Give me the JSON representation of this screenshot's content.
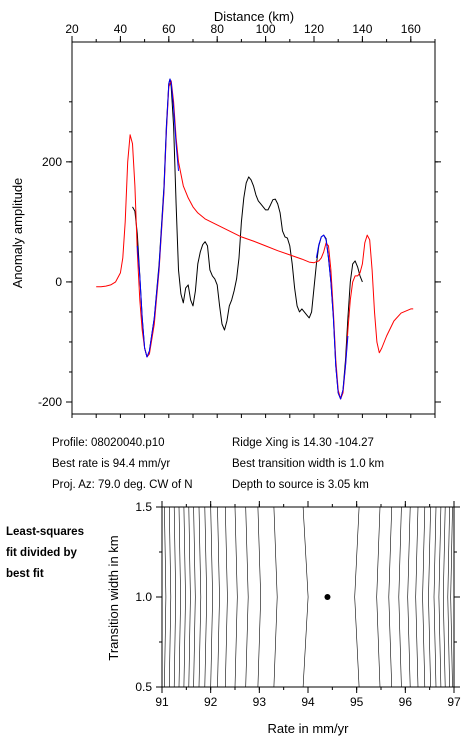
{
  "chart_data": [
    {
      "type": "line",
      "xlabel": "Distance (km)",
      "ylabel": "Anomaly amplitude",
      "xlim": [
        20,
        170
      ],
      "ylim": [
        -210,
        360
      ],
      "xticks": [
        20,
        40,
        60,
        80,
        100,
        120,
        140,
        160
      ],
      "yticks": [
        -200,
        0,
        200
      ],
      "x_axis_position": "top",
      "grid": false,
      "series": [
        {
          "color": "#000000",
          "role": "observed",
          "points": [
            [
              45,
              125
            ],
            [
              46,
              118
            ],
            [
              47,
              80
            ],
            [
              48,
              10
            ],
            [
              49,
              -60
            ],
            [
              50,
              -110
            ],
            [
              51,
              -125
            ],
            [
              52,
              -115
            ],
            [
              54,
              -60
            ],
            [
              56,
              30
            ],
            [
              58,
              160
            ],
            [
              59,
              260
            ],
            [
              60,
              330
            ],
            [
              60.5,
              338
            ],
            [
              61,
              325
            ],
            [
              62,
              260
            ],
            [
              63,
              130
            ],
            [
              64,
              20
            ],
            [
              65,
              -20
            ],
            [
              66,
              -35
            ],
            [
              67,
              -10
            ],
            [
              68,
              -5
            ],
            [
              69,
              -30
            ],
            [
              70,
              -40
            ],
            [
              71,
              -15
            ],
            [
              72,
              30
            ],
            [
              73,
              50
            ],
            [
              74,
              62
            ],
            [
              75,
              67
            ],
            [
              76,
              60
            ],
            [
              77,
              20
            ],
            [
              78,
              10
            ],
            [
              79,
              5
            ],
            [
              80,
              -5
            ],
            [
              81,
              -40
            ],
            [
              82,
              -70
            ],
            [
              83,
              -80
            ],
            [
              84,
              -65
            ],
            [
              85,
              -40
            ],
            [
              86,
              -30
            ],
            [
              87,
              -15
            ],
            [
              88,
              5
            ],
            [
              89,
              40
            ],
            [
              90,
              100
            ],
            [
              91,
              140
            ],
            [
              92,
              165
            ],
            [
              93,
              175
            ],
            [
              94,
              170
            ],
            [
              95,
              160
            ],
            [
              96,
              145
            ],
            [
              97,
              135
            ],
            [
              98,
              130
            ],
            [
              99,
              125
            ],
            [
              100,
              120
            ],
            [
              101,
              120
            ],
            [
              102,
              128
            ],
            [
              103,
              137
            ],
            [
              104,
              138
            ],
            [
              105,
              130
            ],
            [
              106,
              115
            ],
            [
              107,
              85
            ],
            [
              108,
              75
            ],
            [
              109,
              73
            ],
            [
              110,
              60
            ],
            [
              111,
              30
            ],
            [
              112,
              -10
            ],
            [
              113,
              -40
            ],
            [
              114,
              -50
            ],
            [
              115,
              -45
            ],
            [
              116,
              -50
            ],
            [
              117,
              -55
            ],
            [
              118,
              -60
            ],
            [
              119,
              -50
            ],
            [
              120,
              -10
            ],
            [
              121,
              30
            ],
            [
              122,
              60
            ],
            [
              123,
              75
            ],
            [
              124,
              78
            ],
            [
              125,
              72
            ],
            [
              126,
              40
            ],
            [
              127,
              0
            ],
            [
              128,
              -60
            ],
            [
              129,
              -140
            ],
            [
              130,
              -185
            ],
            [
              131,
              -195
            ],
            [
              132,
              -180
            ],
            [
              133,
              -130
            ],
            [
              134,
              -60
            ],
            [
              135,
              0
            ],
            [
              136,
              30
            ],
            [
              137,
              35
            ],
            [
              138,
              25
            ],
            [
              139,
              10
            ],
            [
              140,
              0
            ]
          ]
        },
        {
          "color": "#ff0000",
          "role": "model",
          "points": [
            [
              30,
              -8
            ],
            [
              32,
              -8
            ],
            [
              34,
              -7
            ],
            [
              36,
              -5
            ],
            [
              38,
              0
            ],
            [
              40,
              15
            ],
            [
              41,
              40
            ],
            [
              42,
              100
            ],
            [
              43,
              200
            ],
            [
              44,
              245
            ],
            [
              45,
              230
            ],
            [
              46,
              160
            ],
            [
              47,
              50
            ],
            [
              48,
              -30
            ],
            [
              49,
              -80
            ],
            [
              50,
              -110
            ],
            [
              51,
              -125
            ],
            [
              52,
              -120
            ],
            [
              54,
              -70
            ],
            [
              56,
              20
            ],
            [
              58,
              150
            ],
            [
              59,
              250
            ],
            [
              60,
              325
            ],
            [
              61,
              335
            ],
            [
              62,
              300
            ],
            [
              63,
              240
            ],
            [
              64,
              200
            ],
            [
              66,
              160
            ],
            [
              68,
              140
            ],
            [
              70,
              125
            ],
            [
              72,
              115
            ],
            [
              75,
              105
            ],
            [
              80,
              95
            ],
            [
              85,
              85
            ],
            [
              90,
              75
            ],
            [
              95,
              68
            ],
            [
              100,
              60
            ],
            [
              105,
              52
            ],
            [
              110,
              45
            ],
            [
              115,
              38
            ],
            [
              118,
              33
            ],
            [
              120,
              32
            ],
            [
              122,
              35
            ],
            [
              123,
              40
            ],
            [
              124,
              50
            ],
            [
              125,
              65
            ],
            [
              126,
              60
            ],
            [
              127,
              20
            ],
            [
              128,
              -50
            ],
            [
              129,
              -130
            ],
            [
              130,
              -180
            ],
            [
              131,
              -195
            ],
            [
              132,
              -185
            ],
            [
              133,
              -140
            ],
            [
              134,
              -80
            ],
            [
              135,
              -30
            ],
            [
              136,
              0
            ],
            [
              137,
              10
            ],
            [
              138,
              10
            ],
            [
              139,
              15
            ],
            [
              140,
              30
            ],
            [
              141,
              65
            ],
            [
              142,
              78
            ],
            [
              143,
              70
            ],
            [
              144,
              20
            ],
            [
              145,
              -50
            ],
            [
              146,
              -100
            ],
            [
              147,
              -118
            ],
            [
              148,
              -110
            ],
            [
              150,
              -90
            ],
            [
              153,
              -65
            ],
            [
              156,
              -52
            ],
            [
              160,
              -45
            ],
            [
              161,
              -45
            ]
          ]
        },
        {
          "color": "#0000ff",
          "role": "fit",
          "points": [
            [
              47,
              60
            ],
            [
              48,
              10
            ],
            [
              49,
              -60
            ],
            [
              50,
              -110
            ],
            [
              51,
              -125
            ],
            [
              52,
              -115
            ],
            [
              54,
              -60
            ],
            [
              56,
              25
            ],
            [
              58,
              155
            ],
            [
              59,
              255
            ],
            [
              60,
              330
            ],
            [
              60.5,
              338
            ],
            [
              61,
              332
            ],
            [
              62,
              290
            ],
            [
              63,
              230
            ],
            [
              64,
              185
            ]
          ]
        },
        {
          "color": "#0000ff",
          "role": "fit",
          "points": [
            [
              121,
              40
            ],
            [
              122,
              62
            ],
            [
              123,
              75
            ],
            [
              124,
              78
            ],
            [
              125,
              70
            ],
            [
              126,
              40
            ],
            [
              127,
              0
            ],
            [
              128,
              -60
            ],
            [
              129,
              -140
            ],
            [
              130,
              -185
            ],
            [
              131,
              -195
            ],
            [
              132,
              -180
            ],
            [
              133,
              -140
            ],
            [
              134,
              -90
            ]
          ]
        }
      ]
    },
    {
      "type": "contour",
      "xlabel": "Rate in mm/yr",
      "ylabel": "Transition width in km",
      "xlim": [
        91,
        97
      ],
      "ylim": [
        0.5,
        1.5
      ],
      "xticks": [
        91,
        92,
        93,
        94,
        95,
        96,
        97
      ],
      "yticks": [
        0.5,
        1.0,
        1.5
      ],
      "best_fit_point": [
        94.4,
        1.0
      ],
      "contour_levels_left": [
        91.05,
        91.15,
        91.25,
        91.35,
        91.45,
        91.55,
        91.65,
        91.76,
        91.88,
        92.0,
        92.14,
        92.3,
        92.5,
        92.72,
        92.97,
        93.3,
        93.9
      ],
      "contour_levels_right": [
        95.05,
        95.48,
        95.72,
        95.92,
        96.1,
        96.26,
        96.4,
        96.52,
        96.63,
        96.73,
        96.82,
        96.91,
        96.97
      ]
    }
  ],
  "info": {
    "profile": "Profile: 08020040.p10",
    "best_rate": "Best rate is 94.4 mm/yr",
    "proj_az": "Proj. Az: 79.0 deg. CW of N",
    "ridge_xing": "Ridge Xing is 14.30 -104.27",
    "transition": "Best transition width is 1.0 km",
    "depth": "Depth to source is   3.05 km"
  },
  "side_note": [
    "Least-squares",
    "fit divided by",
    "best fit"
  ],
  "colors": {
    "observed": "#000000",
    "model": "#ff0000",
    "fit": "#0000ff"
  }
}
